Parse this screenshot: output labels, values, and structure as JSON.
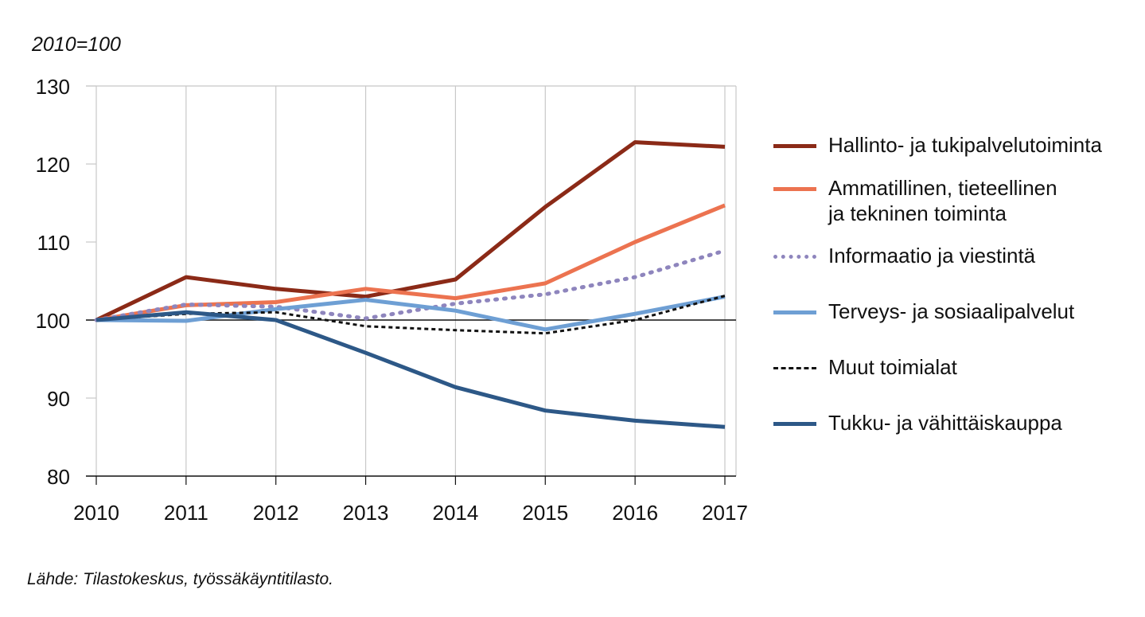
{
  "chart_data": {
    "type": "line",
    "ylabel": "2010=100",
    "source": "Lähde: Tilastokeskus, työssäkäyntitilasto.",
    "x": [
      "2010",
      "2011",
      "2012",
      "2013",
      "2014",
      "2015",
      "2016",
      "2017"
    ],
    "ylim": [
      80,
      130
    ],
    "yticks": [
      "80",
      "90",
      "100",
      "110",
      "120",
      "130"
    ],
    "reference_line": 100,
    "grid": "vertical",
    "legend_position": "right",
    "series": [
      {
        "name": "Hallinto- ja tukipalvelutoiminta",
        "color": "#8b2a17",
        "style": "solid",
        "values": [
          100,
          105.5,
          104,
          103,
          105.2,
          114.5,
          122.8,
          122.2
        ]
      },
      {
        "name": "Ammatillinen, tieteellinen\nja tekninen toiminta",
        "color": "#ec7350",
        "style": "solid",
        "values": [
          100,
          101.9,
          102.3,
          104,
          102.8,
          104.7,
          110,
          114.7
        ]
      },
      {
        "name": "Informaatio ja viestintä",
        "color": "#8e85bd",
        "style": "dotted",
        "values": [
          100,
          102,
          101.7,
          100.2,
          102.1,
          103.3,
          105.5,
          108.9
        ]
      },
      {
        "name": "Terveys- ja sosiaalipalvelut",
        "color": "#6e9fd4",
        "style": "solid",
        "values": [
          100,
          99.9,
          101.4,
          102.6,
          101.2,
          98.8,
          100.8,
          103
        ]
      },
      {
        "name": "Muut toimialat",
        "color": "#111111",
        "style": "dashed",
        "values": [
          100,
          100.8,
          101,
          99.2,
          98.7,
          98.3,
          100,
          103.1
        ]
      },
      {
        "name": "Tukku- ja vähittäiskauppa",
        "color": "#2d5887",
        "style": "solid",
        "values": [
          100,
          101,
          100,
          95.8,
          91.4,
          88.4,
          87.1,
          86.3
        ]
      }
    ]
  }
}
